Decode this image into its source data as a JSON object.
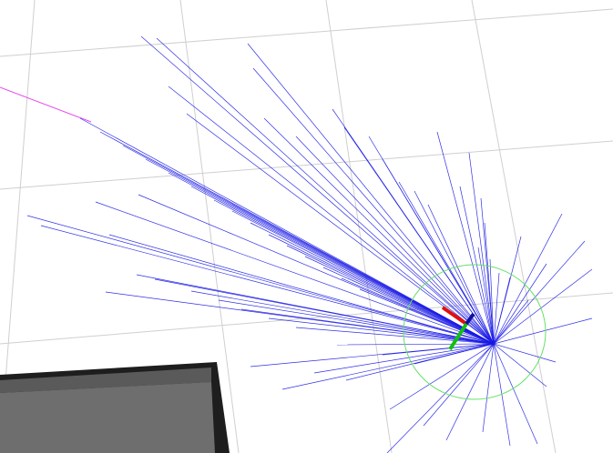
{
  "view": {
    "type": "3d-visualization-render",
    "background_color": "#ffffff"
  },
  "colors": {
    "grid": "#cfcfcf",
    "scan_beam": "#1a1ae6",
    "trajectory": "#e84ae8",
    "footprint_circle": "#66e066",
    "axis_x": "#e01010",
    "axis_y": "#10c010",
    "axis_z": "#1010a0",
    "obstacle_top": "#5a5a5a",
    "obstacle_bottom": "#6e6e6e",
    "obstacle_edge": "#1e1e1e"
  },
  "icons": {
    "scan_origin": "laser-scan-origin-icon",
    "robot_frame": "robot-axes-icon"
  }
}
